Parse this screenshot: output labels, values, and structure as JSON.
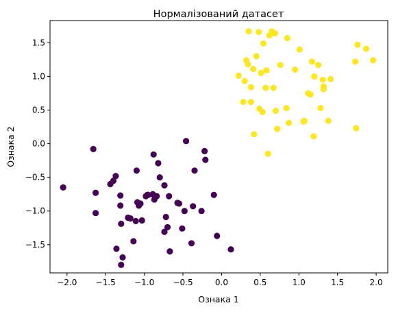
{
  "chart_data": {
    "type": "scatter",
    "title": "Нормалізований датасет",
    "xlabel": "Ознака 1",
    "ylabel": "Ознака 2",
    "xlim": [
      -2.22,
      2.15
    ],
    "ylim": [
      -1.92,
      1.83
    ],
    "xticks": [
      -2.0,
      -1.5,
      -1.0,
      -0.5,
      0.0,
      0.5,
      1.0,
      1.5,
      2.0
    ],
    "xtick_labels": [
      "−2.0",
      "−1.5",
      "−1.0",
      "−0.5",
      "0.0",
      "0.5",
      "1.0",
      "1.5",
      "2.0"
    ],
    "yticks": [
      -1.5,
      -1.0,
      -0.5,
      0.0,
      0.5,
      1.0,
      1.5
    ],
    "ytick_labels": [
      "−1.5",
      "−1.0",
      "−0.5",
      "0.0",
      "0.5",
      "1.0",
      "1.5"
    ],
    "grid": false,
    "series": [
      {
        "color": "#440154",
        "points": [
          [
            -2.05,
            -0.65
          ],
          [
            -1.66,
            -0.08
          ],
          [
            -1.63,
            -0.73
          ],
          [
            -1.63,
            -1.03
          ],
          [
            -1.44,
            -0.6
          ],
          [
            -1.4,
            -0.55
          ],
          [
            -1.37,
            -0.48
          ],
          [
            -1.36,
            -1.56
          ],
          [
            -1.31,
            -0.77
          ],
          [
            -1.31,
            -0.92
          ],
          [
            -1.3,
            -1.19
          ],
          [
            -1.3,
            -1.8
          ],
          [
            -1.28,
            -1.69
          ],
          [
            -1.21,
            -1.1
          ],
          [
            -1.18,
            -1.11
          ],
          [
            -1.14,
            -1.45
          ],
          [
            -1.11,
            -1.15
          ],
          [
            -1.1,
            -0.4
          ],
          [
            -1.09,
            -0.87
          ],
          [
            -1.07,
            -0.92
          ],
          [
            -1.05,
            -0.89
          ],
          [
            -1.03,
            -1.14
          ],
          [
            -0.98,
            -0.78
          ],
          [
            -0.96,
            -0.76
          ],
          [
            -0.95,
            -0.76
          ],
          [
            -0.89,
            -0.75
          ],
          [
            -0.88,
            -0.16
          ],
          [
            -0.87,
            -0.83
          ],
          [
            -0.84,
            -0.78
          ],
          [
            -0.82,
            -0.29
          ],
          [
            -0.8,
            -0.5
          ],
          [
            -0.74,
            -0.62
          ],
          [
            -0.72,
            -1.09
          ],
          [
            -0.74,
            -1.31
          ],
          [
            -0.7,
            -1.24
          ],
          [
            -0.68,
            -0.78
          ],
          [
            -0.67,
            -1.6
          ],
          [
            -0.57,
            -0.88
          ],
          [
            -0.55,
            -0.89
          ],
          [
            -0.51,
            -1.26
          ],
          [
            -0.48,
            -1.0
          ],
          [
            -0.46,
            0.04
          ],
          [
            -0.39,
            -1.48
          ],
          [
            -0.37,
            -0.93
          ],
          [
            -0.35,
            -0.4
          ],
          [
            -0.26,
            -1.0
          ],
          [
            -0.22,
            -0.11
          ],
          [
            -0.21,
            -0.24
          ],
          [
            -0.1,
            -0.76
          ],
          [
            -0.06,
            -1.37
          ],
          [
            0.12,
            -1.57
          ]
        ]
      },
      {
        "color": "#fde725",
        "points": [
          [
            0.22,
            1.01
          ],
          [
            0.28,
            0.62
          ],
          [
            0.3,
            0.93
          ],
          [
            0.32,
            1.24
          ],
          [
            0.34,
            1.18
          ],
          [
            0.35,
            1.67
          ],
          [
            0.38,
            0.84
          ],
          [
            0.38,
            0.62
          ],
          [
            0.41,
            1.11
          ],
          [
            0.42,
            0.14
          ],
          [
            0.45,
            1.3
          ],
          [
            0.48,
            1.66
          ],
          [
            0.49,
            0.52
          ],
          [
            0.51,
            1.05
          ],
          [
            0.53,
            0.47
          ],
          [
            0.54,
            1.49
          ],
          [
            0.57,
            0.83
          ],
          [
            0.58,
            1.09
          ],
          [
            0.6,
            -0.15
          ],
          [
            0.62,
            1.61
          ],
          [
            0.65,
            1.67
          ],
          [
            0.67,
            0.83
          ],
          [
            0.69,
            1.64
          ],
          [
            0.7,
            0.49
          ],
          [
            0.72,
            0.22
          ],
          [
            0.76,
            1.17
          ],
          [
            0.84,
            0.53
          ],
          [
            0.85,
            1.57
          ],
          [
            0.87,
            0.31
          ],
          [
            0.95,
            1.1
          ],
          [
            1.01,
            1.4
          ],
          [
            1.06,
            0.33
          ],
          [
            1.07,
            0.34
          ],
          [
            1.12,
            0.75
          ],
          [
            1.15,
            0.73
          ],
          [
            1.17,
            1.22
          ],
          [
            1.19,
            0.11
          ],
          [
            1.2,
            1.0
          ],
          [
            1.25,
            1.17
          ],
          [
            1.28,
            0.53
          ],
          [
            1.31,
            0.95
          ],
          [
            1.32,
            0.85
          ],
          [
            1.32,
            0.81
          ],
          [
            1.38,
            0.34
          ],
          [
            1.41,
            0.96
          ],
          [
            1.73,
            1.22
          ],
          [
            1.74,
            0.23
          ],
          [
            1.76,
            1.47
          ],
          [
            1.87,
            1.41
          ],
          [
            1.96,
            1.24
          ]
        ]
      }
    ]
  }
}
